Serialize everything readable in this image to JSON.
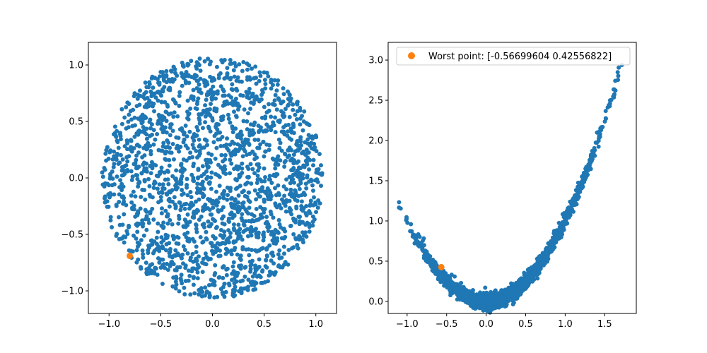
{
  "chart_data": [
    {
      "type": "scatter",
      "title": "",
      "xlabel": "",
      "ylabel": "",
      "xlim": [
        -1.2,
        1.2
      ],
      "ylim": [
        -1.2,
        1.2
      ],
      "xticks": [
        -1.0,
        -0.5,
        0.0,
        0.5,
        1.0
      ],
      "xtick_labels": [
        "−1.0",
        "−0.5",
        "0.0",
        "0.5",
        "1.0"
      ],
      "yticks": [
        -1.0,
        -0.5,
        0.0,
        0.5,
        1.0
      ],
      "ytick_labels": [
        "−1.0",
        "−0.5",
        "0.0",
        "0.5",
        "1.0"
      ],
      "grid": false,
      "legend": null,
      "series": [
        {
          "color": "#1f77b4",
          "shape": "disk",
          "center": [
            0.0,
            0.0
          ],
          "radius": 1.07,
          "count": 2000,
          "points": [
            [
              0.0,
              1.07
            ],
            [
              1.05,
              0.0
            ],
            [
              -1.08,
              0.0
            ],
            [
              0.0,
              -1.07
            ],
            [
              0.75,
              0.75
            ],
            [
              -0.75,
              0.75
            ],
            [
              0.7,
              -0.72
            ],
            [
              -0.7,
              -0.75
            ],
            [
              0.3,
              0.2
            ],
            [
              -0.4,
              -0.3
            ]
          ]
        },
        {
          "color": "#ff7f0e",
          "shape": "point",
          "points": [
            [
              -0.8,
              -0.69
            ]
          ]
        }
      ]
    },
    {
      "type": "scatter",
      "title": "",
      "xlabel": "",
      "ylabel": "",
      "xlim": [
        -1.24,
        1.9
      ],
      "ylim": [
        -0.15,
        3.22
      ],
      "xticks": [
        -1.0,
        -0.5,
        0.0,
        0.5,
        1.0,
        1.5
      ],
      "xtick_labels": [
        "−1.0",
        "−0.5",
        "0.0",
        "0.5",
        "1.0",
        "1.5"
      ],
      "yticks": [
        0.0,
        0.5,
        1.0,
        1.5,
        2.0,
        2.5,
        3.0
      ],
      "ytick_labels": [
        "0.0",
        "0.5",
        "1.0",
        "1.5",
        "2.0",
        "2.5",
        "3.0"
      ],
      "grid": false,
      "legend": {
        "placement": "top-right"
      },
      "series": [
        {
          "color": "#1f77b4",
          "shape": "band",
          "count": 2000,
          "x_range": [
            -1.13,
            1.72
          ],
          "points": [
            [
              -1.13,
              1.35
            ],
            [
              -0.5,
              0.32
            ],
            [
              0.0,
              0.05
            ],
            [
              0.5,
              0.3
            ],
            [
              1.0,
              0.95
            ],
            [
              1.5,
              2.35
            ],
            [
              1.72,
              3.05
            ]
          ]
        },
        {
          "name": "Worst point: [-0.56699604  0.42556822]",
          "color": "#ff7f0e",
          "shape": "point",
          "points": [
            [
              -0.567,
              0.4256
            ]
          ]
        }
      ]
    }
  ]
}
